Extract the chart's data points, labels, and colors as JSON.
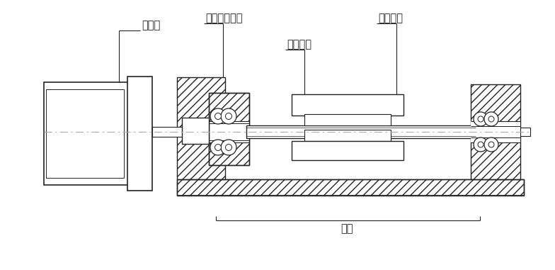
{
  "bg_color": "#ffffff",
  "line_color": "#222222",
  "labels": {
    "motor": "モータ",
    "coupling": "カップリング",
    "table": "テーブル",
    "screw": "送りねじ",
    "bearing": "軸受"
  },
  "font_size": 10.5,
  "fig_width": 7.84,
  "fig_height": 3.81,
  "dpi": 100
}
